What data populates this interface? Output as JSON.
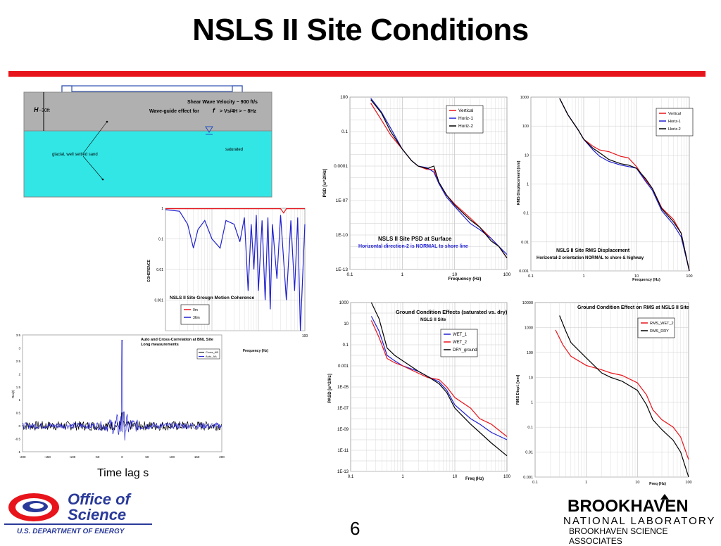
{
  "slide": {
    "title": "NSLS II Site Conditions",
    "page_number": "6",
    "time_lag_caption": "Time lag s",
    "accent_color": "#e8141b"
  },
  "soil_diagram": {
    "shear_wave_text": "Shear Wave Velocity ~ 900 ft/s",
    "waveguide_text_a": "Wave-guide effect for",
    "waveguide_text_f": "f",
    "waveguide_text_b": "> Vs/4H > ~ 8Hz",
    "depth_label_h": "H",
    "depth_label_value": "~30ft",
    "sand_label": "glacial, well settled sand",
    "saturated_label": "saturated",
    "soil_color": "#b0b0b0",
    "water_color": "#33e6e6"
  },
  "logos": {
    "office_line1": "Office of",
    "office_line2": "Science",
    "doe": "U.S. DEPARTMENT OF ENERGY",
    "bnl_top": "BROOKHAVEN",
    "bnl_bottom": "NATIONAL LABORATORY",
    "bnl_associates": "BROOKHAVEN SCIENCE ASSOCIATES"
  },
  "chart_data": [
    {
      "id": "psd",
      "type": "line",
      "xscale": "log",
      "yscale": "log",
      "xlim": [
        0.1,
        100
      ],
      "ylim": [
        1e-13,
        100
      ],
      "xticks": [
        "0.1",
        "1",
        "10",
        "100"
      ],
      "yticks": [
        "1E-13",
        "1E-10",
        "1E-07",
        "0.0001",
        "0.1",
        "100"
      ],
      "xlabel": "Frequency (Hz)",
      "ylabel": "PSD [u^2/Hz]",
      "annotation_title": "NSLS II Site PSD at Surface",
      "annotation_subtitle": "Horizontal direction-2  is NORMAL to shore line",
      "series": [
        {
          "name": "Vertical",
          "color": "#e8141b",
          "x": [
            0.25,
            0.4,
            0.6,
            1,
            1.5,
            2,
            3,
            4,
            5,
            7,
            10,
            20,
            30,
            50,
            70,
            100
          ],
          "y": [
            30,
            1,
            0.05,
            0.003,
            0.0003,
            0.0001,
            5e-05,
            5e-05,
            3e-06,
            3e-07,
            5e-08,
            3e-09,
            5e-10,
            5e-11,
            1e-11,
            1e-12
          ]
        },
        {
          "name": "Horiz-1",
          "color": "#2020d0",
          "x": [
            0.25,
            0.4,
            0.6,
            1,
            1.5,
            2,
            3,
            4,
            5,
            7,
            10,
            20,
            30,
            50,
            70,
            100
          ],
          "y": [
            80,
            5,
            0.2,
            0.003,
            0.0003,
            0.0001,
            7e-05,
            3e-05,
            3e-06,
            2e-07,
            3e-08,
            1e-09,
            3e-10,
            5e-11,
            1e-11,
            2e-12
          ]
        },
        {
          "name": "Horiz-2",
          "color": "#000000",
          "x": [
            0.25,
            0.4,
            0.6,
            1,
            1.5,
            2,
            3,
            4,
            5,
            7,
            10,
            20,
            30,
            50,
            70,
            100
          ],
          "y": [
            60,
            4,
            0.1,
            0.003,
            0.0003,
            0.0001,
            6e-05,
            0.0001,
            4e-06,
            3e-07,
            4e-08,
            2e-09,
            5e-10,
            3e-11,
            1e-11,
            1e-12
          ]
        }
      ]
    },
    {
      "id": "rms",
      "type": "line",
      "xscale": "log",
      "yscale": "log",
      "xlim": [
        0.1,
        100
      ],
      "ylim": [
        0.001,
        1000
      ],
      "xticks": [
        "0.1",
        "1",
        "10",
        "100"
      ],
      "yticks": [
        "0.001",
        "0.01",
        "0.1",
        "1",
        "10",
        "100",
        "1000"
      ],
      "xlabel": "Frequency (Hz)",
      "ylabel": "RMS Displacement [nm]",
      "annotation_title": "NSLS II Site RMS Displacement",
      "annotation_subtitle": "Horizontal-2 orientation NORMAL to shore & highway",
      "series": [
        {
          "name": "Vertical",
          "color": "#e8141b",
          "x": [
            0.35,
            0.5,
            0.8,
            1,
            1.5,
            2,
            3,
            5,
            7,
            10,
            15,
            20,
            30,
            50,
            70,
            100
          ],
          "y": [
            900,
            250,
            70,
            35,
            20,
            15,
            13,
            9,
            8,
            4,
            1.3,
            0.7,
            0.15,
            0.06,
            0.02,
            0.001
          ]
        },
        {
          "name": "Horiz-1",
          "color": "#2020d0",
          "x": [
            0.35,
            0.5,
            0.8,
            1,
            1.5,
            2,
            3,
            5,
            7,
            10,
            15,
            20,
            30,
            50,
            70,
            100
          ],
          "y": [
            900,
            250,
            70,
            35,
            15,
            9,
            6,
            4.5,
            4,
            3.5,
            1.2,
            0.6,
            0.12,
            0.04,
            0.015,
            0.001
          ]
        },
        {
          "name": "Horiz-2",
          "color": "#000000",
          "x": [
            0.35,
            0.5,
            0.8,
            1,
            1.5,
            2,
            3,
            5,
            7,
            10,
            15,
            20,
            30,
            50,
            70,
            100
          ],
          "y": [
            900,
            250,
            70,
            35,
            17,
            12,
            7,
            5,
            4.5,
            3.5,
            1.5,
            0.7,
            0.14,
            0.05,
            0.02,
            0.001
          ]
        }
      ]
    },
    {
      "id": "coherence",
      "type": "line",
      "xscale": "log",
      "yscale": "log",
      "xlim": [
        0.1,
        100
      ],
      "ylim": [
        0.0001,
        1
      ],
      "xticks": [
        "100"
      ],
      "yticks": [
        "1",
        "0.1",
        "0.01",
        "0.001"
      ],
      "xlabel": "Frequency (Hz)",
      "ylabel": "COHERENCE",
      "annotation_title": "NSLS II Site Grougn Motion Coherence",
      "series": [
        {
          "name": "0m",
          "color": "#e8141b",
          "x": [
            0.1,
            1,
            10,
            30,
            35,
            40,
            60,
            100
          ],
          "y": [
            0.97,
            0.97,
            0.97,
            0.97,
            0.7,
            0.97,
            0.97,
            0.97
          ]
        },
        {
          "name": "36m",
          "color": "#2020d0",
          "x": [
            0.1,
            0.2,
            0.3,
            0.4,
            0.5,
            0.7,
            1,
            1.5,
            2,
            3,
            4,
            5,
            6,
            7,
            8,
            9,
            10,
            12,
            14,
            16,
            18,
            20,
            25,
            30,
            40,
            50,
            60,
            70,
            80,
            100
          ],
          "y": [
            0.9,
            0.8,
            0.3,
            0.05,
            0.2,
            0.4,
            0.1,
            0.05,
            0.4,
            0.3,
            0.08,
            0.5,
            0.002,
            0.3,
            0.01,
            0.6,
            0.002,
            0.4,
            0.001,
            0.5,
            0.0005,
            0.3,
            0.005,
            0.6,
            0.001,
            0.4,
            0.002,
            0.5,
            0.0001,
            0.3
          ]
        }
      ]
    },
    {
      "id": "correlation",
      "type": "line",
      "xlim": [
        -200,
        200
      ],
      "ylim": [
        -1,
        3.5
      ],
      "xticks": [
        "-200",
        "-150",
        "-100",
        "-50",
        "0",
        "50",
        "100",
        "150",
        "200"
      ],
      "yticks": [
        "-1",
        "-0.5",
        "0",
        "0.5",
        "1",
        "1.5",
        "2",
        "2.5",
        "3",
        "3.5"
      ],
      "ylabel": "Rxx(t)",
      "xlabel": "Time lag s",
      "annotation_title": "Auto and Cross-Correlation at BNL Site",
      "annotation_subtitle": "Long measurements",
      "series": [
        {
          "name": "Cross_AB",
          "color": "#000000"
        },
        {
          "name": "Auto_AA",
          "color": "#2020d0"
        }
      ]
    },
    {
      "id": "pasd_ground",
      "type": "line",
      "xscale": "log",
      "yscale": "log",
      "xlim": [
        0.1,
        100
      ],
      "ylim": [
        1e-13,
        1000
      ],
      "xticks": [
        "0.1",
        "1",
        "10",
        "100"
      ],
      "yticks": [
        "1E-13",
        "1E-11",
        "1E-09",
        "1E-07",
        "1E-05",
        "0.001",
        "0.1",
        "10",
        "1000"
      ],
      "xlabel": "Freq (Hz)",
      "ylabel": "PASD [u^2/Hz]",
      "annotation_title": "Ground Condition Effects (saturated vs. dry)",
      "annotation_subtitle": "NSLS II Site",
      "series": [
        {
          "name": "WET_1",
          "color": "#2020d0",
          "x": [
            0.25,
            0.35,
            0.5,
            0.7,
            1,
            2,
            3,
            5,
            7,
            10,
            20,
            30,
            50,
            100
          ],
          "y": [
            50,
            2,
            0.01,
            0.003,
            0.001,
            0.0003,
            0.0001,
            3e-05,
            5e-06,
            2e-07,
            1e-08,
            3e-09,
            5e-10,
            1e-10
          ]
        },
        {
          "name": "WET_2",
          "color": "#e8141b",
          "x": [
            0.25,
            0.35,
            0.5,
            0.7,
            1,
            2,
            3,
            5,
            7,
            10,
            20,
            30,
            50,
            100
          ],
          "y": [
            20,
            0.5,
            0.005,
            0.002,
            0.001,
            0.0002,
            8e-05,
            5e-05,
            1e-05,
            1e-06,
            1e-07,
            1e-08,
            3e-09,
            2e-10
          ]
        },
        {
          "name": "DRY_ground",
          "color": "#000000",
          "x": [
            0.25,
            0.35,
            0.5,
            0.7,
            1,
            2,
            3,
            5,
            7,
            10,
            20,
            30,
            50,
            100
          ],
          "y": [
            1000,
            30,
            0.05,
            0.01,
            0.003,
            0.0003,
            0.0001,
            2e-05,
            3e-06,
            1e-07,
            3e-09,
            5e-10,
            5e-11,
            3e-12
          ]
        }
      ]
    },
    {
      "id": "rms_ground",
      "type": "line",
      "xscale": "log",
      "yscale": "log",
      "xlim": [
        0.1,
        100
      ],
      "ylim": [
        0.001,
        10000
      ],
      "xticks": [
        "0.1",
        "1",
        "10",
        "100"
      ],
      "yticks": [
        "0.001",
        "0.01",
        "0.1",
        "1",
        "10",
        "100",
        "1000",
        "10000"
      ],
      "xlabel": "Freq (Hz)",
      "ylabel": "RMS Displ. [nm]",
      "annotation_title": "Ground Condition Effect on RMS at NSLS II Site",
      "series": [
        {
          "name": "RMS_WET_2",
          "color": "#e8141b",
          "x": [
            0.25,
            0.35,
            0.5,
            1,
            2,
            3,
            5,
            10,
            15,
            20,
            30,
            50,
            70,
            100
          ],
          "y": [
            800,
            200,
            70,
            30,
            20,
            15,
            12,
            6,
            2,
            0.5,
            0.2,
            0.1,
            0.04,
            0.005
          ]
        },
        {
          "name": "RMS_DRY",
          "color": "#000000",
          "x": [
            0.3,
            0.4,
            0.5,
            1,
            2,
            3,
            5,
            10,
            15,
            20,
            30,
            50,
            70,
            100
          ],
          "y": [
            3000,
            700,
            250,
            60,
            15,
            10,
            7,
            3,
            0.8,
            0.2,
            0.08,
            0.03,
            0.01,
            0.001
          ]
        }
      ]
    }
  ]
}
